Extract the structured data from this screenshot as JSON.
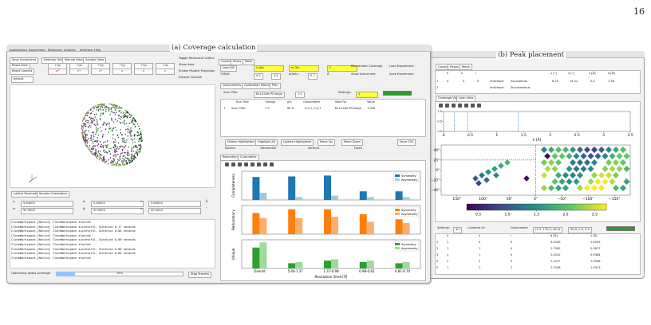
{
  "page_number": "16",
  "panel_a": {
    "caption": "(a) Coverage calculation",
    "menu": [
      "Applications",
      "Experiment",
      "Reduction",
      "Analysis",
      "Interface",
      "Help"
    ],
    "toolbar": [
      "Save Screenshot",
      "Reset View",
      "Reset Camera"
    ],
    "view_tabs": [
      "Detector View",
      "Manual View",
      "Sample View"
    ],
    "view_buttons": [
      "+Qx",
      "−Qx",
      "+Qy",
      "−Qy",
      "+Qz",
      "−Qz",
      "a*",
      "b*",
      "c*",
      "a",
      "b",
      "c"
    ],
    "dropdown": "default",
    "checkboxes": [
      "Toggle Reciprocal Lattice",
      "Show Axes",
      "Enable Parallel Projection",
      "Expand Console"
    ],
    "lattice_tabs": [
      "Lattice Parameters",
      "Sample Orientation"
    ],
    "lattice": [
      [
        "a:",
        "5.64000",
        "b:",
        "5.64000",
        "c:",
        "5.64000",
        "Å"
      ],
      [
        "α:",
        "90.0000",
        "β:",
        "90.0000",
        "γ:",
        "90.0000",
        "°"
      ]
    ],
    "console": [
      "CloneWorkspace-[Notice] CloneWorkspace started",
      "CloneWorkspace-[Notice] CloneWorkspace successful, Duration 0.17 seconds",
      "CloneWorkspace-[Notice] CloneWorkspace successful, Duration 0.00 seconds",
      "CloneWorkspace-[Notice] CloneWorkspace started",
      "CloneWorkspace-[Notice] CloneWorkspace successful, Duration 0.00 seconds",
      "CloneWorkspace-[Notice] CloneWorkspace started",
      "CloneWorkspace-[Notice] CloneWorkspace successful, Duration 0.00 seconds",
      "CloneWorkspace-[Notice] CloneWorkspace successful, Duration 0.00 seconds",
      "CloneWorkspace-[Notice] CloneWorkspace started"
    ],
    "progress_label": "Optimizing peaks coverage",
    "progress_text": "15%",
    "stop_button": "Stop Process",
    "right_tabs": [
      "Coverage",
      "Peaks",
      "Mesh"
    ],
    "fields": [
      "Load UB",
      "Cubic",
      "m-3m",
      "F",
      "Recalculate Coverage",
      "Load Experiment"
    ],
    "fields2": [
      "TOPAZ",
      "0.4",
      "3.5",
      "d(min):",
      "0.7",
      "Å",
      "Show Instrument",
      "Save Experiment"
    ],
    "sub_tabs": [
      "Goniometers",
      "Calibration Matrix",
      "Plan"
    ],
    "scan_row": [
      "Scan Title",
      "BL12:Det:PCharge",
      "1.0",
      "Settings:",
      "1"
    ],
    "table_header": [
      "Run Title",
      "Omega",
      "phi",
      "Goniometer",
      "Wait For",
      "Value"
    ],
    "table_row": [
      "1",
      "Scan Title",
      "7.0",
      "84.0",
      "0,0,1, 0,0,1",
      "BL12:Det:PCharge",
      "1.000"
    ],
    "action_buttons": [
      "Delete Highlighted",
      "Highlight All",
      "Update Highlighted",
      "Move Up",
      "Move Down",
      "Save CSV"
    ],
    "mesh_row": [
      "Sphere",
      "Tetrahedral",
      "Vertices",
      "Faces"
    ],
    "plot_tabs": [
      "Resolution",
      "Cumulative"
    ],
    "chart": {
      "type": "bar",
      "categories": [
        "Overall",
        "5.44-1.37",
        "1.37-0.98",
        "0.98-0.81",
        "0.81-0.70"
      ],
      "xlabel": "Resolution Shell [Å]",
      "panels": [
        {
          "ylabel": "Completeness",
          "ylim": [
            0,
            1
          ],
          "series": [
            {
              "name": "Symmetry",
              "color": "#1f77b4",
              "values": [
                0.8,
                0.82,
                0.85,
                0.3,
                0.3
              ]
            },
            {
              "name": "Asymmetry",
              "color": "#9ecae1",
              "values": [
                0.25,
                0.1,
                0.15,
                0.1,
                0.1
              ]
            }
          ]
        },
        {
          "ylabel": "Redundancy",
          "ylim": [
            0,
            2.3
          ],
          "series": [
            {
              "name": "Symmetry",
              "color": "#ff7f0e",
              "values": [
                1.7,
                2.0,
                2.0,
                1.6,
                1.2
              ]
            },
            {
              "name": "Asymmetry",
              "color": "#fdae6b",
              "values": [
                1.3,
                1.3,
                1.4,
                1.0,
                0.9
              ]
            }
          ]
        },
        {
          "ylabel": "Unique",
          "ylim": [
            0,
            1.1
          ],
          "series": [
            {
              "name": "Symmetry",
              "color": "#2ca02c",
              "values": [
                0.8,
                0.2,
                0.3,
                0.25,
                0.2
              ]
            },
            {
              "name": "Asymmetry",
              "color": "#a1d99b",
              "values": [
                1.0,
                0.25,
                0.35,
                0.3,
                0.25
              ]
            }
          ]
        }
      ]
    }
  },
  "panel_b": {
    "caption": "(b) Peak placement",
    "tabs": [
      "Coverage",
      "Peaks",
      "Mesh"
    ],
    "table_header": [
      "h",
      "k",
      "l",
      "γ [°]",
      "ν [°]",
      "λ [Å]",
      "d [Å]"
    ],
    "table_rows": [
      [
        "1",
        "4",
        "0",
        "0",
        "Individual",
        "Equivalents",
        "6.20",
        "14.22",
        "0.4",
        "7.36"
      ],
      [
        "2",
        "Individual",
        "Simultaneous"
      ]
    ],
    "view_tabs": [
      "Coverage View",
      "Lean View"
    ],
    "lambda_plot": {
      "type": "rug",
      "xlabel": "λ [Å]",
      "xlim": [
        0,
        3.5
      ],
      "xticks": [
        0,
        0.5,
        1,
        1.5,
        2,
        2.5,
        3,
        3.5
      ],
      "ylim": [
        0,
        1
      ],
      "yticks": [
        {
          "value": 0,
          "label": "0.0"
        },
        {
          "value": 0.5,
          "label": "0.5"
        },
        {
          "value": 1,
          "label": "1.0"
        }
      ],
      "values": [
        0.2,
        0.45,
        1.4
      ],
      "color": "#1f77b4"
    },
    "angle_plot": {
      "type": "heatmap",
      "xlim": [
        180,
        -180
      ],
      "xticks": [
        {
          "value": 150,
          "label": "150°"
        },
        {
          "value": 100,
          "label": "100°"
        },
        {
          "value": 50,
          "label": "50°"
        },
        {
          "value": 0,
          "label": "0°"
        },
        {
          "value": -50,
          "label": "−50°"
        },
        {
          "value": -100,
          "label": "−100°"
        },
        {
          "value": -150,
          "label": "−150°"
        }
      ],
      "ylim": [
        -50,
        50
      ],
      "yticks": [
        {
          "value": 40,
          "label": "40°"
        },
        {
          "value": 20,
          "label": "20°"
        },
        {
          "value": 0,
          "label": "0°"
        },
        {
          "value": -20,
          "label": "−20°"
        },
        {
          "value": -40,
          "label": "−40°"
        }
      ],
      "colormap": [
        "#440154",
        "#3b528b",
        "#21918c",
        "#5ec962",
        "#fde725"
      ],
      "clim": [
        0.3,
        2.7
      ],
      "cticks": [
        0.5,
        {
          "value": 1,
          "label": "1.0"
        },
        1.5,
        {
          "value": 2,
          "label": "2.0"
        },
        2.5
      ]
    },
    "settings": [
      "Settings:",
      "#1",
      "Combine All",
      "Goniometer:",
      "(1.0, 170.0, 44.0)",
      "40.0, 0.0, 0.0"
    ],
    "peak_table_header": [
      "h",
      "k",
      "l",
      "d [Å]",
      "λ [Å]"
    ],
    "peak_rows": [
      [
        "1",
        "1",
        "0",
        "0",
        "3.4163",
        "1.4035"
      ],
      [
        "2",
        "1",
        "1",
        "0",
        "2.7082",
        "0.9877"
      ],
      [
        "3",
        "2",
        "1",
        "0",
        "2.4252",
        "0.9384"
      ],
      [
        "4",
        "2",
        "2",
        "0",
        "2.2227",
        "1.0336"
      ],
      [
        "5",
        "1",
        "1",
        "2",
        "2.2246",
        "1.5923"
      ]
    ]
  }
}
